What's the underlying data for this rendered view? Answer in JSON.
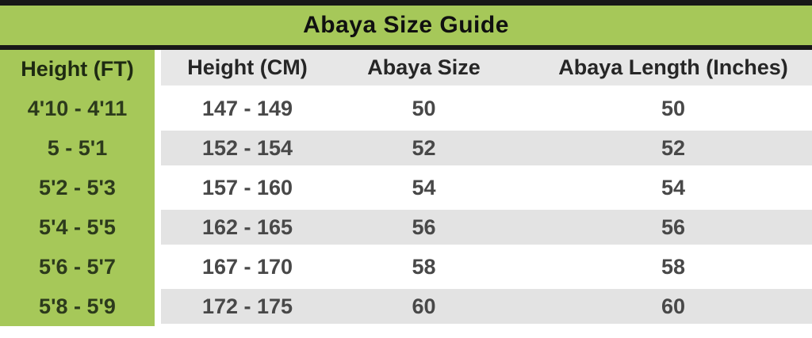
{
  "title": "Abaya Size Guide",
  "table": {
    "headers": {
      "height_ft": "Height (FT)",
      "height_cm": "Height (CM)",
      "size": "Abaya Size",
      "length": "Abaya Length (Inches)"
    },
    "rows": [
      {
        "height_ft": "4'10 - 4'11",
        "height_cm": "147 - 149",
        "size": "50",
        "length": "50"
      },
      {
        "height_ft": "5 - 5'1",
        "height_cm": "152 - 154",
        "size": "52",
        "length": "52"
      },
      {
        "height_ft": "5'2 - 5'3",
        "height_cm": "157 - 160",
        "size": "54",
        "length": "54"
      },
      {
        "height_ft": "5'4 - 5'5",
        "height_cm": "162 - 165",
        "size": "56",
        "length": "56"
      },
      {
        "height_ft": "5'6 - 5'7",
        "height_cm": "167 - 170",
        "size": "58",
        "length": "58"
      },
      {
        "height_ft": "5'8 - 5'9",
        "height_cm": "172 - 175",
        "size": "60",
        "length": "60"
      }
    ]
  },
  "colors": {
    "accent_green": "#a6c859",
    "bar_black": "#181818",
    "band_gray": "#e3e3e3",
    "green_text": "#2c3a1c",
    "data_text": "#484848"
  },
  "chart_data": {
    "type": "table",
    "title": "Abaya Size Guide",
    "columns": [
      "Height (FT)",
      "Height (CM)",
      "Abaya Size",
      "Abaya Length (Inches)"
    ],
    "rows": [
      [
        "4'10 - 4'11",
        "147 - 149",
        50,
        50
      ],
      [
        "5 - 5'1",
        "152 - 154",
        52,
        52
      ],
      [
        "5'2 - 5'3",
        "157 - 160",
        54,
        54
      ],
      [
        "5'4 - 5'5",
        "162 - 165",
        56,
        56
      ],
      [
        "5'6 - 5'7",
        "167 - 170",
        58,
        58
      ],
      [
        "5'8 - 5'9",
        "172 - 175",
        60,
        60
      ]
    ]
  }
}
